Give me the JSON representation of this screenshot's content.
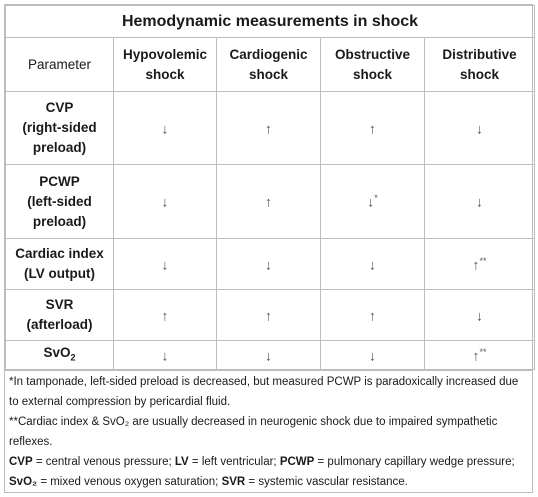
{
  "title": "Hemodynamic measurements in shock",
  "columns": {
    "parameter": "Parameter",
    "hypovolemic": [
      "Hypovolemic",
      "shock"
    ],
    "cardiogenic": [
      "Cardiogenic",
      "shock"
    ],
    "obstructive": [
      "Obstructive",
      "shock"
    ],
    "distributive": [
      "Distributive",
      "shock"
    ]
  },
  "rows": {
    "cvp": {
      "label": [
        "CVP",
        "(right-sided",
        "preload)"
      ],
      "values": [
        "↓",
        "↑",
        "↑",
        "↓"
      ],
      "marks": [
        "",
        "",
        "",
        ""
      ]
    },
    "pcwp": {
      "label": [
        "PCWP",
        "(left-sided",
        "preload)"
      ],
      "values": [
        "↓",
        "↑",
        "↓",
        "↓"
      ],
      "marks": [
        "",
        "",
        "*",
        ""
      ]
    },
    "ci": {
      "label": [
        "Cardiac index",
        "(LV output)"
      ],
      "values": [
        "↓",
        "↓",
        "↓",
        "↑"
      ],
      "marks": [
        "",
        "",
        "",
        "**"
      ]
    },
    "svr": {
      "label": [
        "SVR",
        "(afterload)"
      ],
      "values": [
        "↑",
        "↑",
        "↑",
        "↓"
      ],
      "marks": [
        "",
        "",
        "",
        ""
      ]
    },
    "svo2": {
      "label_main": "SvO",
      "label_sub": "2",
      "values": [
        "↓",
        "↓",
        "↓",
        "↑"
      ],
      "marks": [
        "",
        "",
        "",
        "**"
      ]
    }
  },
  "notes": {
    "n1": "*In tamponade, left-sided preload is decreased, but measured PCWP is paradoxically increased due to external compression by pericardial fluid.",
    "n2": "**Cardiac index & SvO₂ are usually decreased in neurogenic shock due to impaired sympathetic reflexes.",
    "abbr": {
      "cvp_t": "CVP",
      "cvp_d": " = central venous pressure; ",
      "lv_t": "LV",
      "lv_d": " = left ventricular; ",
      "pcwp_t": "PCWP",
      "pcwp_d": " = pulmonary capillary wedge pressure; ",
      "svo2_t": "SvO₂",
      "svo2_d": " = mixed venous oxygen saturation; ",
      "svr_t": "SVR",
      "svr_d": " = systemic vascular resistance."
    }
  }
}
